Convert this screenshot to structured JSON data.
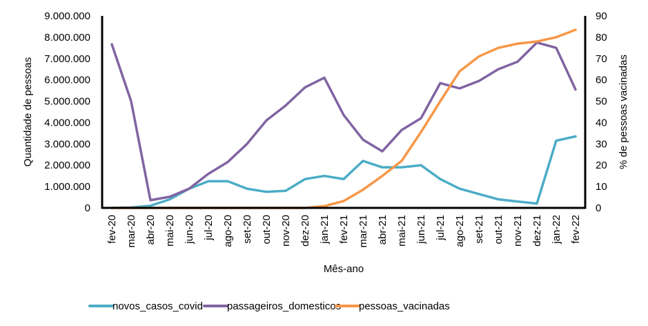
{
  "chart_data": {
    "type": "line",
    "title": "",
    "xlabel": "Mês-ano",
    "ylabel": "Quantidade de pessoas",
    "y2label": "% de pessoas vacinadas",
    "ylim": [
      0,
      9000000
    ],
    "y2lim": [
      0,
      90
    ],
    "yticks": [
      "0",
      "1.000.000",
      "2.000.000",
      "3.000.000",
      "4.000.000",
      "5.000.000",
      "6.000.000",
      "7.000.000",
      "8.000.000",
      "9.000.000"
    ],
    "y2ticks": [
      "0",
      "10",
      "20",
      "30",
      "40",
      "50",
      "60",
      "70",
      "80",
      "90"
    ],
    "grid": false,
    "legend_position": "bottom",
    "categories": [
      "fev-20",
      "mar-20",
      "abr-20",
      "mai-20",
      "jun-20",
      "jul-20",
      "ago-20",
      "set-20",
      "out-20",
      "nov-20",
      "dez-20",
      "jan-21",
      "fev-21",
      "mar-21",
      "abr-21",
      "mai-21",
      "jun-21",
      "jul-21",
      "ago-21",
      "set-21",
      "out-21",
      "nov-21",
      "dez-21",
      "jan-22",
      "fev-22"
    ],
    "series": [
      {
        "name": "novos_casos_covid",
        "axis": "left",
        "color": "#4BACC6",
        "values": [
          0,
          20000,
          100000,
          400000,
          900000,
          1250000,
          1250000,
          900000,
          750000,
          800000,
          1350000,
          1500000,
          1350000,
          2200000,
          1900000,
          1900000,
          2000000,
          1350000,
          900000,
          650000,
          400000,
          300000,
          200000,
          3150000,
          3350000
        ]
      },
      {
        "name": "passageiros_domesticos",
        "axis": "left",
        "color": "#8064A2",
        "values": [
          7670000,
          5000000,
          360000,
          520000,
          900000,
          1600000,
          2150000,
          3000000,
          4100000,
          4800000,
          5650000,
          6100000,
          4350000,
          3200000,
          2650000,
          3650000,
          4200000,
          5850000,
          5600000,
          5950000,
          6500000,
          6850000,
          7750000,
          7500000,
          5550000
        ]
      },
      {
        "name": "pessoas_vacinadas",
        "axis": "right",
        "color": "#F79646",
        "values": [
          0,
          0,
          0,
          0,
          0,
          0,
          0,
          0,
          0,
          0,
          0,
          0.8,
          3.2,
          8.5,
          15,
          22,
          35.5,
          50,
          64,
          71,
          75,
          77,
          78,
          80,
          83.5
        ]
      }
    ]
  }
}
